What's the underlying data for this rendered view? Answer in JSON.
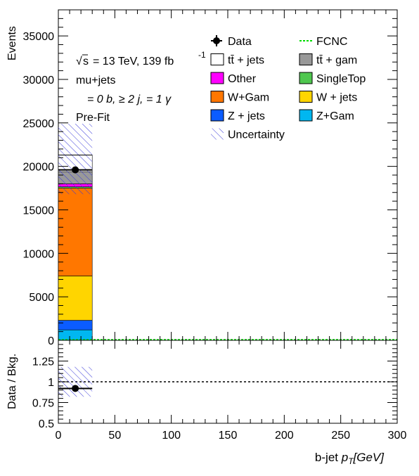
{
  "chart_data": [
    {
      "type": "bar",
      "stacked": true,
      "ylabel": "Events",
      "xlim": [
        0,
        300
      ],
      "ylim": [
        0,
        38000
      ],
      "x_ticks": [
        0,
        50,
        100,
        150,
        200,
        250,
        300
      ],
      "y_ticks": [
        0,
        5000,
        10000,
        15000,
        20000,
        25000,
        30000,
        35000
      ],
      "bin": {
        "low": 0,
        "high": 30
      },
      "annotations": {
        "sqrt_s": "s",
        "lumi_text": "= 13 TeV, 139 fb",
        "lumi_sup": "-1",
        "channel": "mu+jets",
        "selection": "= 0 b, ≥ 2 j, = 1 γ",
        "stage": "Pre-Fit"
      },
      "series": [
        {
          "name": "Z+Gam",
          "color": "#00b7f0",
          "values": [
            1200
          ]
        },
        {
          "name": "Z + jets",
          "color": "#0b5cff",
          "values": [
            1100
          ]
        },
        {
          "name": "W + jets",
          "color": "#ffd500",
          "values": [
            5100
          ]
        },
        {
          "name": "W+Gam",
          "color": "#ff7700",
          "values": [
            10100
          ]
        },
        {
          "name": "SingleTop",
          "color": "#4fc74f",
          "values": [
            150
          ]
        },
        {
          "name": "Other",
          "color": "#ff00ff",
          "values": [
            350
          ]
        },
        {
          "name": "tt̄ +  gam",
          "color": "#999999",
          "values": [
            1400
          ]
        },
        {
          "name": "tt̄ + jets",
          "color": "#ffffff",
          "values": [
            1900
          ]
        },
        {
          "name": "FCNC",
          "color": "#00dd00",
          "values": [
            0
          ]
        }
      ],
      "data_points": [
        {
          "name": "Data",
          "x": 15,
          "y": 19600
        }
      ],
      "uncertainty": {
        "name": "Uncertainty",
        "low": 16800,
        "high": 24900
      },
      "legend": [
        {
          "label": "Data",
          "style": "marker"
        },
        {
          "label": "FCNC",
          "style": "dashed",
          "color": "#00dd00"
        },
        {
          "label": "tt̄ + jets",
          "style": "box",
          "color": "#ffffff"
        },
        {
          "label": "tt̄ +  gam",
          "style": "box",
          "color": "#999999"
        },
        {
          "label": "Other",
          "style": "box",
          "color": "#ff00ff"
        },
        {
          "label": "SingleTop",
          "style": "box",
          "color": "#4fc74f"
        },
        {
          "label": "W+Gam",
          "style": "box",
          "color": "#ff7700"
        },
        {
          "label": "W + jets",
          "style": "box",
          "color": "#ffd500"
        },
        {
          "label": "Z + jets",
          "style": "box",
          "color": "#0b5cff"
        },
        {
          "label": "Z+Gam",
          "style": "box",
          "color": "#00b7f0"
        },
        {
          "label": "Uncertainty",
          "style": "hatch"
        }
      ]
    },
    {
      "type": "scatter",
      "ylabel": "Data / Bkg.",
      "xlabel_main": "b-jet ",
      "xlabel_var": "p",
      "xlabel_sub": "T",
      "xlabel_unit": "[GeV]",
      "xlim": [
        0,
        300
      ],
      "ylim": [
        0.5,
        1.5
      ],
      "x_ticks": [
        0,
        50,
        100,
        150,
        200,
        250,
        300
      ],
      "y_ticks": [
        0.5,
        0.75,
        1,
        1.25
      ],
      "y_tick_labels": [
        "0.5",
        "0.75",
        "1",
        "1.25"
      ],
      "reference_line": 1,
      "points": [
        {
          "x": 15,
          "y": 0.92
        }
      ],
      "uncertainty": {
        "low": 0.82,
        "high": 1.18
      }
    }
  ]
}
